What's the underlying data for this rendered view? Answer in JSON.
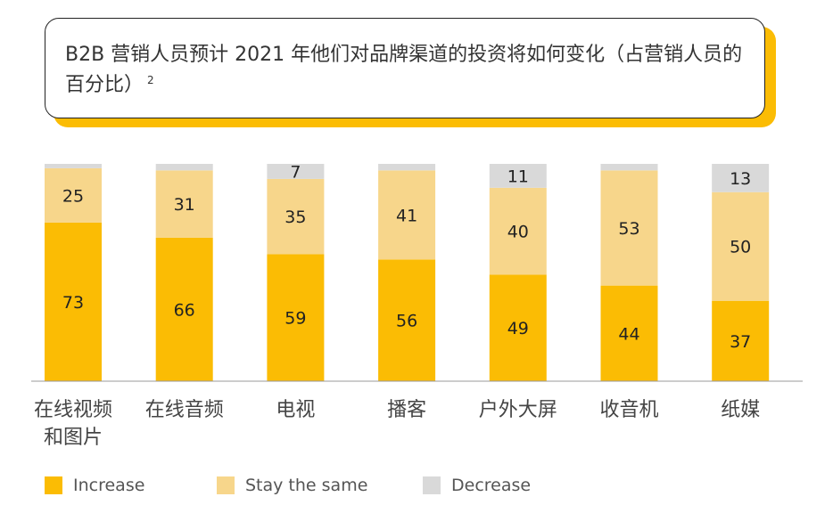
{
  "chart_data": {
    "type": "bar",
    "stacked": true,
    "title": "B2B 营销人员预计 2021 年他们对品牌渠道的投资将如何变化（占营销人员的百分比）",
    "title_superscript": "2",
    "categories": [
      [
        "在线视频",
        "和图片"
      ],
      [
        "在线音频"
      ],
      [
        "电视"
      ],
      [
        "播客"
      ],
      [
        "户外大屏"
      ],
      [
        "收音机"
      ],
      [
        "纸媒"
      ]
    ],
    "series": [
      {
        "name": "Increase",
        "color": "#fbbc04",
        "values": [
          73,
          66,
          59,
          56,
          49,
          44,
          37
        ],
        "labels": [
          "73",
          "66",
          "59",
          "56",
          "49",
          "44",
          "37"
        ]
      },
      {
        "name": "Stay the same",
        "color": "#f7d68b",
        "values": [
          25,
          31,
          35,
          41,
          40,
          53,
          50
        ],
        "labels": [
          "25",
          "31",
          "35",
          "41",
          "40",
          "53",
          "50"
        ]
      },
      {
        "name": "Decrease",
        "color": "#d9d9d9",
        "values": [
          2,
          3,
          7,
          3,
          11,
          3,
          13
        ],
        "labels": [
          "",
          "",
          "7",
          "",
          "11",
          "",
          "13"
        ]
      }
    ],
    "ylim": [
      0,
      100
    ],
    "grid": false,
    "legend_position": "bottom"
  }
}
